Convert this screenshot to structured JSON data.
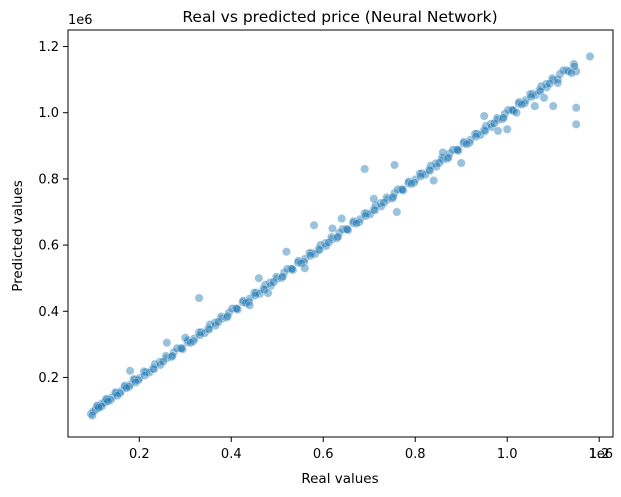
{
  "chart_data": {
    "type": "scatter",
    "title": "Real vs predicted price (Neural Network)",
    "xlabel": "Real values",
    "ylabel": "Predicted values",
    "x_offset_text": "1e6",
    "y_offset_text": "1e6",
    "xlim": [
      45000,
      1230000
    ],
    "ylim": [
      20000,
      1250000
    ],
    "x_ticks": [
      200000,
      400000,
      600000,
      800000,
      1000000,
      1200000
    ],
    "x_tick_labels": [
      "0.2",
      "0.4",
      "0.6",
      "0.8",
      "1.0",
      "1.2"
    ],
    "y_ticks": [
      200000,
      400000,
      600000,
      800000,
      1000000,
      1200000
    ],
    "y_tick_labels": [
      "0.2",
      "0.4",
      "0.6",
      "0.8",
      "1.0",
      "1.2"
    ],
    "grid": false,
    "legend": "none",
    "marker_color": "#1f77b4",
    "marker_alpha": 0.45,
    "series": [
      {
        "x": [
          95000,
          100000,
          105000,
          110000,
          115000,
          120000,
          125000,
          130000,
          140000,
          150000,
          160000,
          170000,
          180000,
          190000,
          200000,
          215000,
          230000,
          245000,
          260000,
          275000,
          290000,
          305000,
          320000,
          335000,
          350000,
          365000,
          380000,
          395000,
          410000,
          425000,
          440000,
          455000,
          470000,
          485000,
          500000,
          515000,
          530000,
          545000,
          560000,
          575000,
          590000,
          605000,
          620000,
          635000,
          650000,
          665000,
          680000,
          695000,
          710000,
          725000,
          740000,
          755000,
          770000,
          785000,
          800000,
          815000,
          830000,
          845000,
          860000,
          875000,
          890000,
          905000,
          920000,
          935000,
          950000,
          965000,
          980000,
          995000,
          1010000,
          1025000,
          1040000,
          1055000,
          1070000,
          1085000,
          1100000,
          1115000,
          1130000,
          1145000,
          1150000,
          1180000,
          98000,
          108000,
          118000,
          128000,
          138000,
          148000,
          158000,
          168000,
          178000,
          188000,
          198000,
          210000,
          222000,
          234000,
          246000,
          258000,
          270000,
          282000,
          294000,
          306000,
          318000,
          330000,
          342000,
          354000,
          366000,
          378000,
          390000,
          402000,
          414000,
          426000,
          438000,
          450000,
          462000,
          474000,
          486000,
          498000,
          510000,
          522000,
          534000,
          546000,
          558000,
          570000,
          582000,
          594000,
          606000,
          618000,
          630000,
          642000,
          654000,
          666000,
          678000,
          690000,
          702000,
          714000,
          726000,
          738000,
          750000,
          762000,
          774000,
          786000,
          798000,
          810000,
          822000,
          834000,
          846000,
          858000,
          870000,
          882000,
          894000,
          906000,
          918000,
          930000,
          942000,
          954000,
          966000,
          978000,
          990000,
          1002000,
          1014000,
          1026000,
          1038000,
          1050000,
          1062000,
          1074000,
          1086000,
          1098000,
          1110000,
          1122000,
          1134000,
          1146000,
          112000,
          132000,
          152000,
          172000,
          192000,
          212000,
          232000,
          252000,
          272000,
          292000,
          312000,
          332000,
          352000,
          372000,
          392000,
          412000,
          432000,
          452000,
          472000,
          492000,
          512000,
          532000,
          552000,
          572000,
          592000,
          612000,
          632000,
          652000,
          672000,
          692000,
          712000,
          732000,
          752000,
          772000,
          792000,
          812000,
          832000,
          852000,
          872000,
          892000,
          912000,
          932000,
          952000,
          972000,
          992000,
          1012000,
          1032000,
          1052000,
          1072000,
          1092000,
          330000,
          440000,
          460000,
          520000,
          580000,
          640000,
          690000,
          710000,
          755000,
          860000,
          900000,
          950000,
          1020000,
          1060000,
          1100000,
          1150000,
          1150000,
          1110000,
          1140000,
          1080000,
          180000,
          260000,
          300000,
          480000,
          560000,
          620000,
          760000,
          840000,
          980000,
          1000000
        ],
        "y": [
          90000,
          98000,
          102000,
          112000,
          115000,
          122000,
          124000,
          133000,
          140000,
          152000,
          158000,
          172000,
          178000,
          192000,
          198000,
          216000,
          228000,
          247000,
          258000,
          276000,
          288000,
          306000,
          318000,
          337000,
          348000,
          366000,
          378000,
          396000,
          408000,
          427000,
          438000,
          456000,
          468000,
          487000,
          498000,
          517000,
          528000,
          547000,
          558000,
          576000,
          588000,
          606000,
          618000,
          637000,
          648000,
          667000,
          678000,
          696000,
          708000,
          727000,
          738000,
          757000,
          768000,
          787000,
          798000,
          817000,
          828000,
          847000,
          858000,
          877000,
          888000,
          907000,
          918000,
          937000,
          948000,
          967000,
          978000,
          997000,
          1008000,
          1027000,
          1038000,
          1057000,
          1068000,
          1087000,
          1098000,
          1117000,
          1128000,
          1147000,
          1125000,
          1170000,
          85000,
          115000,
          112000,
          135000,
          132000,
          155000,
          152000,
          175000,
          172000,
          195000,
          192000,
          218000,
          215000,
          240000,
          238000,
          265000,
          262000,
          288000,
          285000,
          312000,
          310000,
          336000,
          334000,
          360000,
          357000,
          384000,
          381000,
          408000,
          405000,
          432000,
          429000,
          456000,
          453000,
          480000,
          477000,
          504000,
          501000,
          528000,
          525000,
          552000,
          549000,
          576000,
          573000,
          600000,
          597000,
          624000,
          621000,
          648000,
          645000,
          672000,
          669000,
          696000,
          693000,
          720000,
          717000,
          744000,
          741000,
          768000,
          765000,
          792000,
          789000,
          816000,
          813000,
          840000,
          837000,
          864000,
          861000,
          888000,
          885000,
          912000,
          909000,
          936000,
          933000,
          960000,
          957000,
          984000,
          981000,
          1008000,
          1005000,
          1032000,
          1029000,
          1056000,
          1053000,
          1080000,
          1077000,
          1104000,
          1101000,
          1128000,
          1125000,
          1140000,
          108000,
          128000,
          145000,
          168000,
          185000,
          206000,
          225000,
          248000,
          265000,
          288000,
          305000,
          328000,
          345000,
          368000,
          385000,
          408000,
          425000,
          448000,
          465000,
          488000,
          505000,
          528000,
          545000,
          568000,
          585000,
          608000,
          625000,
          648000,
          665000,
          688000,
          705000,
          728000,
          745000,
          768000,
          785000,
          808000,
          825000,
          848000,
          865000,
          888000,
          905000,
          928000,
          945000,
          968000,
          985000,
          1008000,
          1025000,
          1048000,
          1065000,
          1088000,
          440000,
          418000,
          500000,
          580000,
          660000,
          680000,
          830000,
          740000,
          842000,
          880000,
          848000,
          990000,
          1000000,
          1020000,
          1020000,
          965000,
          1015000,
          1090000,
          1120000,
          1045000,
          220000,
          305000,
          320000,
          455000,
          530000,
          650000,
          700000,
          795000,
          945000,
          950000
        ]
      }
    ]
  }
}
